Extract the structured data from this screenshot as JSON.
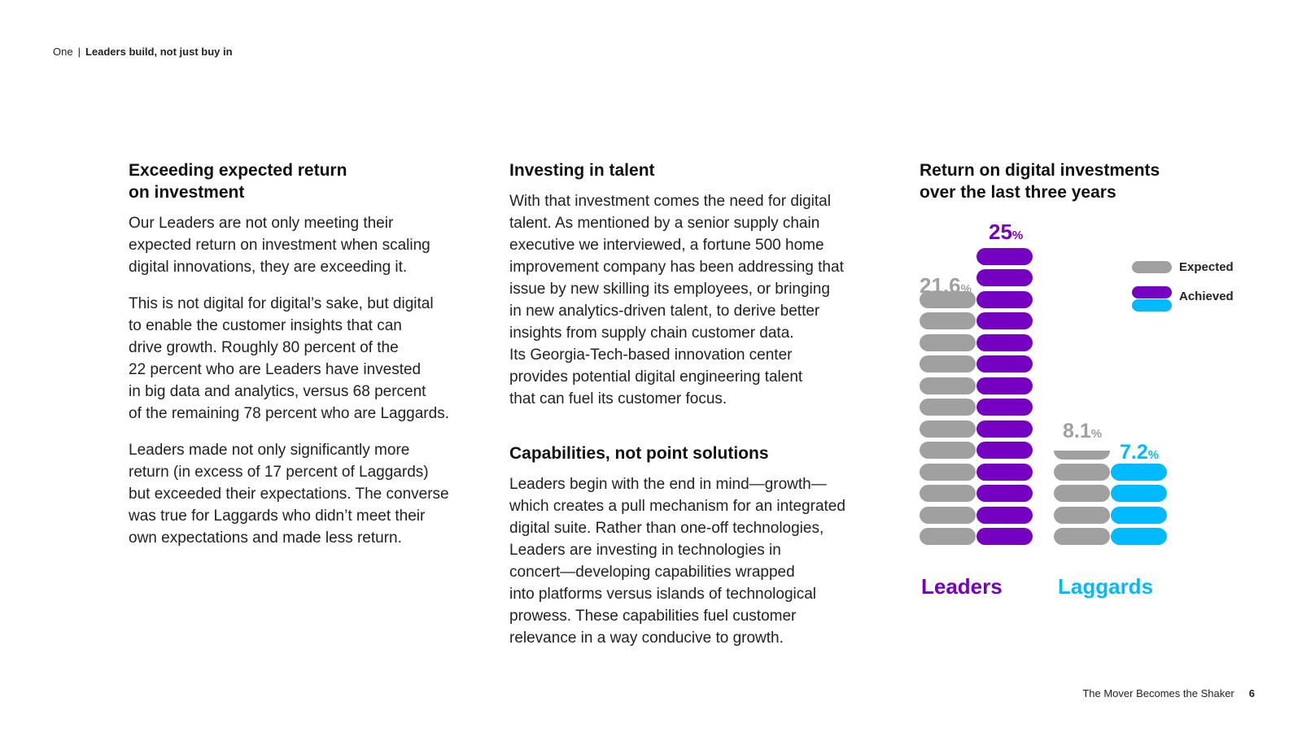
{
  "header": {
    "section": "One",
    "separator": "|",
    "title": "Leaders build, not just buy in"
  },
  "column1": {
    "heading": "Exceeding expected return\non investment",
    "paragraphs": [
      "Our Leaders are not only meeting their\nexpected return on investment when scaling\ndigital innovations, they are exceeding it.",
      "This is not digital for digital’s sake, but digital\nto enable the customer insights that can\ndrive growth. Roughly 80 percent of the\n22 percent who are Leaders have invested\nin big data and analytics, versus 68 percent\nof the remaining 78 percent who are Laggards.",
      "Leaders made not only significantly more\nreturn (in excess of 17 percent of Laggards)\nbut exceeded their expectations. The converse\nwas true for Laggards who didn’t meet their\nown expectations and made less return."
    ]
  },
  "column2": {
    "heading1": "Investing in talent",
    "paragraph1": "With that investment comes the need for digital\ntalent. As mentioned by a senior supply chain\nexecutive we interviewed, a fortune 500 home\nimprovement company has been addressing that\nissue by new skilling its employees, or bringing\nin new analytics-driven talent, to derive better\ninsights from supply chain customer data.\nIts Georgia-Tech-based innovation center\nprovides potential digital engineering talent\nthat can fuel its customer focus.",
    "heading2": "Capabilities, not point solutions",
    "paragraph2": "Leaders begin with the end in mind—growth—\nwhich creates a pull mechanism for an integrated\ndigital suite. Rather than one-off technologies,\nLeaders are investing in technologies in\nconcert—developing capabilities wrapped\ninto platforms versus islands of technological\nprowess. These capabilities fuel customer\nrelevance in a way conducive to growth."
  },
  "chart_data": {
    "type": "bar",
    "title": "Return on digital investments\nover the last three years",
    "categories": [
      "Leaders",
      "Laggards"
    ],
    "series": [
      {
        "name": "Expected",
        "values": [
          21.6,
          8.1
        ]
      },
      {
        "name": "Achieved",
        "values": [
          25,
          7.2
        ]
      }
    ],
    "value_labels": {
      "Leaders": {
        "Expected": "21.6",
        "Achieved": "25"
      },
      "Laggards": {
        "Expected": "8.1",
        "Achieved": "7.2"
      }
    },
    "unit": "%",
    "legend": [
      "Expected",
      "Achieved"
    ],
    "legend_position": "top-right",
    "ylim": [
      0,
      25
    ],
    "colors": {
      "expected": "#a0a0a0",
      "leaders_achieved": "#7500c0",
      "laggards_achieved": "#00baff",
      "leaders_label": "#7500c0",
      "laggards_label": "#00baff"
    }
  },
  "footer": {
    "title": "The Mover Becomes the Shaker",
    "page": "6"
  }
}
